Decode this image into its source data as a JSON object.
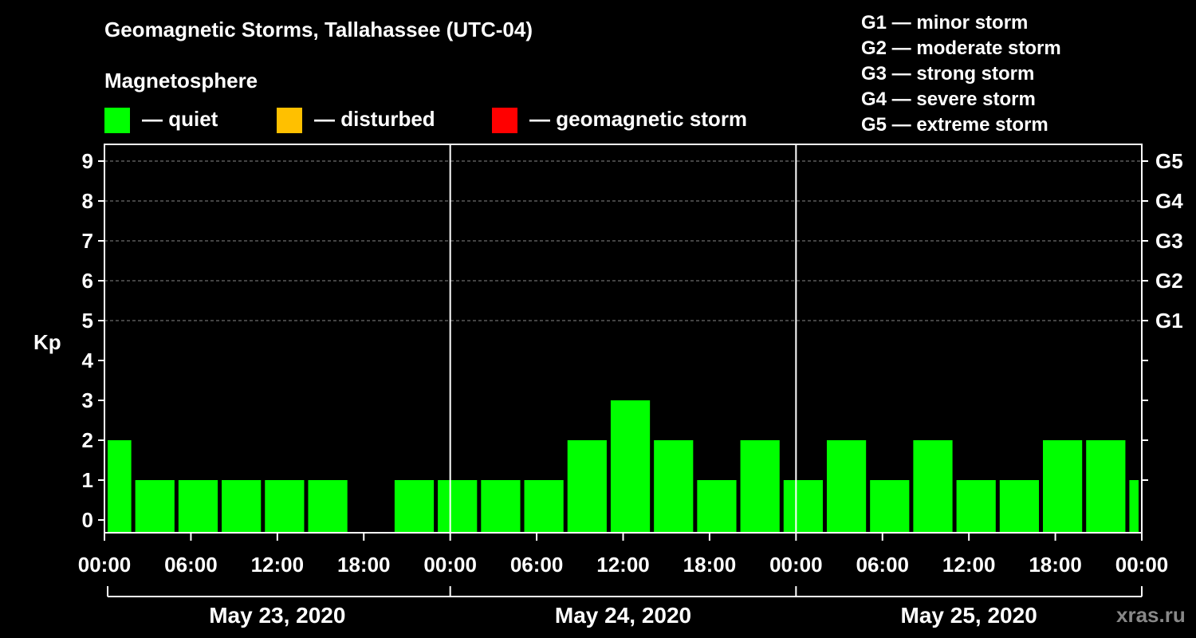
{
  "title": "Geomagnetic Storms, Tallahassee (UTC-04)",
  "legend": {
    "title": "Magnetosphere",
    "items": [
      {
        "label": "— quiet",
        "color": "#00ff00"
      },
      {
        "label": "— disturbed",
        "color": "#ffc000"
      },
      {
        "label": "— geomagnetic storm",
        "color": "#ff0000"
      }
    ]
  },
  "storm_scale": [
    "G1 — minor storm",
    "G2 — moderate storm",
    "G3 — strong storm",
    "G4 — severe storm",
    "G5 — extreme storm"
  ],
  "credit": "xras.ru",
  "chart_data": {
    "type": "bar",
    "title": "Geomagnetic Storms, Tallahassee (UTC-04)",
    "ylabel": "Kp",
    "ylim": [
      0,
      9
    ],
    "y_ticks": [
      "0",
      "1",
      "2",
      "3",
      "4",
      "5",
      "6",
      "7",
      "8",
      "9"
    ],
    "right_axis_labels": [
      {
        "kp": 5,
        "label": "G1"
      },
      {
        "kp": 6,
        "label": "G2"
      },
      {
        "kp": 7,
        "label": "G3"
      },
      {
        "kp": 8,
        "label": "G4"
      },
      {
        "kp": 9,
        "label": "G5"
      }
    ],
    "x_tick_labels": [
      "00:00",
      "06:00",
      "12:00",
      "18:00",
      "00:00",
      "06:00",
      "12:00",
      "18:00",
      "00:00",
      "06:00",
      "12:00",
      "18:00",
      "00:00"
    ],
    "days": [
      "May 23, 2020",
      "May 24, 2020",
      "May 25, 2020"
    ],
    "interval_hours": 3,
    "series": [
      {
        "name": "Kp",
        "color": "#00ff00",
        "points": [
          {
            "start_hour": -1,
            "value": 2
          },
          {
            "start_hour": 2,
            "value": 1
          },
          {
            "start_hour": 5,
            "value": 1
          },
          {
            "start_hour": 8,
            "value": 1
          },
          {
            "start_hour": 11,
            "value": 1
          },
          {
            "start_hour": 14,
            "value": 1
          },
          {
            "start_hour": 17,
            "value": 0
          },
          {
            "start_hour": 20,
            "value": 1
          },
          {
            "start_hour": 23,
            "value": 1
          },
          {
            "start_hour": 26,
            "value": 1
          },
          {
            "start_hour": 29,
            "value": 1
          },
          {
            "start_hour": 32,
            "value": 2
          },
          {
            "start_hour": 35,
            "value": 3
          },
          {
            "start_hour": 38,
            "value": 2
          },
          {
            "start_hour": 41,
            "value": 1
          },
          {
            "start_hour": 44,
            "value": 2
          },
          {
            "start_hour": 47,
            "value": 1
          },
          {
            "start_hour": 50,
            "value": 2
          },
          {
            "start_hour": 53,
            "value": 1
          },
          {
            "start_hour": 56,
            "value": 2
          },
          {
            "start_hour": 59,
            "value": 1
          },
          {
            "start_hour": 62,
            "value": 1
          },
          {
            "start_hour": 65,
            "value": 2
          },
          {
            "start_hour": 68,
            "value": 2
          },
          {
            "start_hour": 71,
            "value": 1
          }
        ]
      }
    ]
  }
}
